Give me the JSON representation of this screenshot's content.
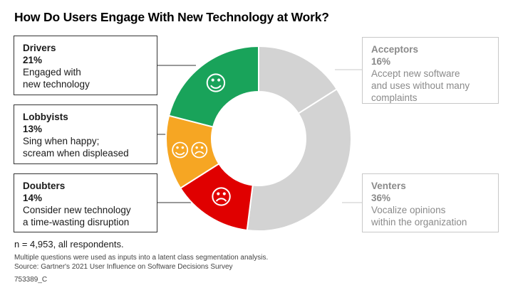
{
  "title": "How Do Users Engage With New Technology at Work?",
  "chart_data": {
    "type": "pie",
    "variant": "donut",
    "title": "How Do Users Engage With New Technology at Work?",
    "categories": [
      "Acceptors",
      "Venters",
      "Doubters",
      "Lobbyists",
      "Drivers"
    ],
    "values": [
      16,
      36,
      14,
      13,
      21
    ],
    "unit": "%",
    "colors": [
      "#d3d3d3",
      "#d3d3d3",
      "#e00000",
      "#f6a623",
      "#19a35a"
    ],
    "segments": [
      {
        "name": "Acceptors",
        "percent_label": "16%",
        "value": 16,
        "color": "#d3d3d3",
        "icon": "",
        "description": "Accept new software\nand uses without many\ncomplaints"
      },
      {
        "name": "Venters",
        "percent_label": "36%",
        "value": 36,
        "color": "#d3d3d3",
        "icon": "",
        "description": "Vocalize opinions\nwithin the organization"
      },
      {
        "name": "Doubters",
        "percent_label": "14%",
        "value": 14,
        "color": "#e00000",
        "icon": "☹",
        "description": "Consider new technology\na time-wasting disruption"
      },
      {
        "name": "Lobbyists",
        "percent_label": "13%",
        "value": 13,
        "color": "#f6a623",
        "icon": "☺☹",
        "description": "Sing when happy;\nscream when displeased"
      },
      {
        "name": "Drivers",
        "percent_label": "21%",
        "value": 21,
        "color": "#19a35a",
        "icon": "☺",
        "description": "Engaged with\nnew technology"
      }
    ],
    "legend": "callout boxes"
  },
  "note": "n = 4,953, all respondents.",
  "footnotes": [
    "Multiple questions were used as inputs into a latent class segmentation analysis.",
    "Source: Gartner's 2021 User Influence on Software Decisions Survey",
    "753389_C"
  ]
}
